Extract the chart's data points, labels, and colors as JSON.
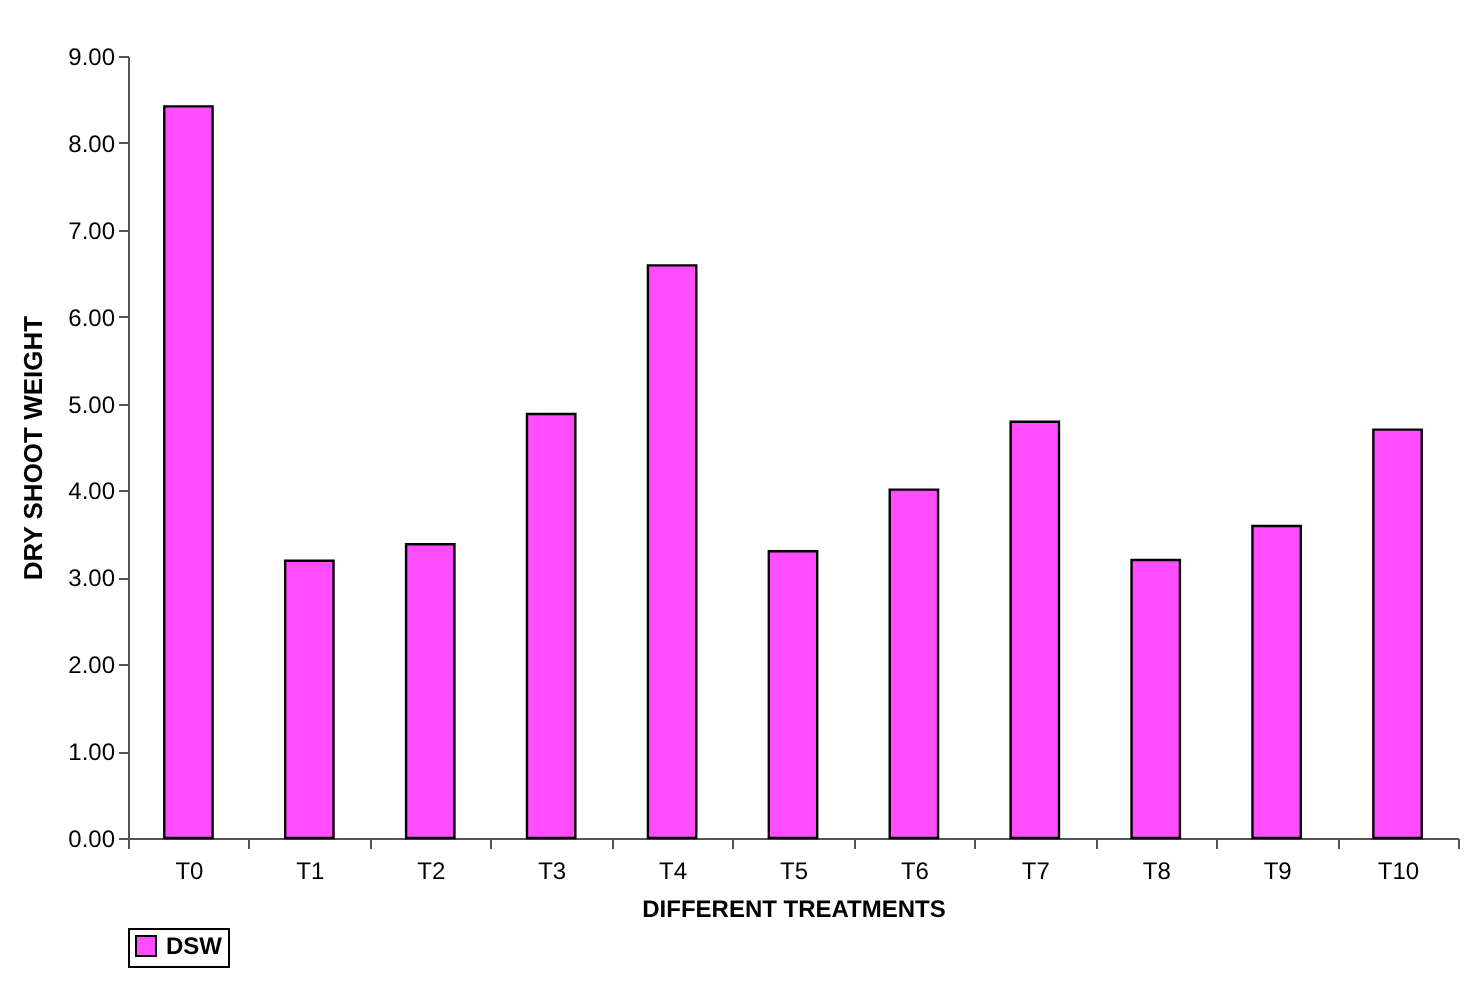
{
  "chart_data": {
    "type": "bar",
    "xlabel": "DIFFERENT TREATMENTS",
    "ylabel": "DRY SHOOT WEIGHT",
    "categories": [
      "T0",
      "T1",
      "T2",
      "T3",
      "T4",
      "T5",
      "T6",
      "T7",
      "T8",
      "T9",
      "T10"
    ],
    "series": [
      {
        "name": "DSW",
        "color": "#ff4dff",
        "values": [
          8.42,
          3.19,
          3.38,
          4.88,
          6.59,
          3.3,
          4.01,
          4.79,
          3.2,
          3.59,
          4.7
        ]
      }
    ],
    "ylim": [
      0,
      9
    ],
    "yticks": [
      {
        "value": 0,
        "label": "0.00"
      },
      {
        "value": 1,
        "label": "1.00"
      },
      {
        "value": 2,
        "label": "2.00"
      },
      {
        "value": 3,
        "label": "3.00"
      },
      {
        "value": 4,
        "label": "4.00"
      },
      {
        "value": 5,
        "label": "5.00"
      },
      {
        "value": 6,
        "label": "6.00"
      },
      {
        "value": 7,
        "label": "7.00"
      },
      {
        "value": 8,
        "label": "8.00"
      },
      {
        "value": 9,
        "label": "9.00"
      }
    ],
    "grid": false,
    "legend": "bottom"
  }
}
